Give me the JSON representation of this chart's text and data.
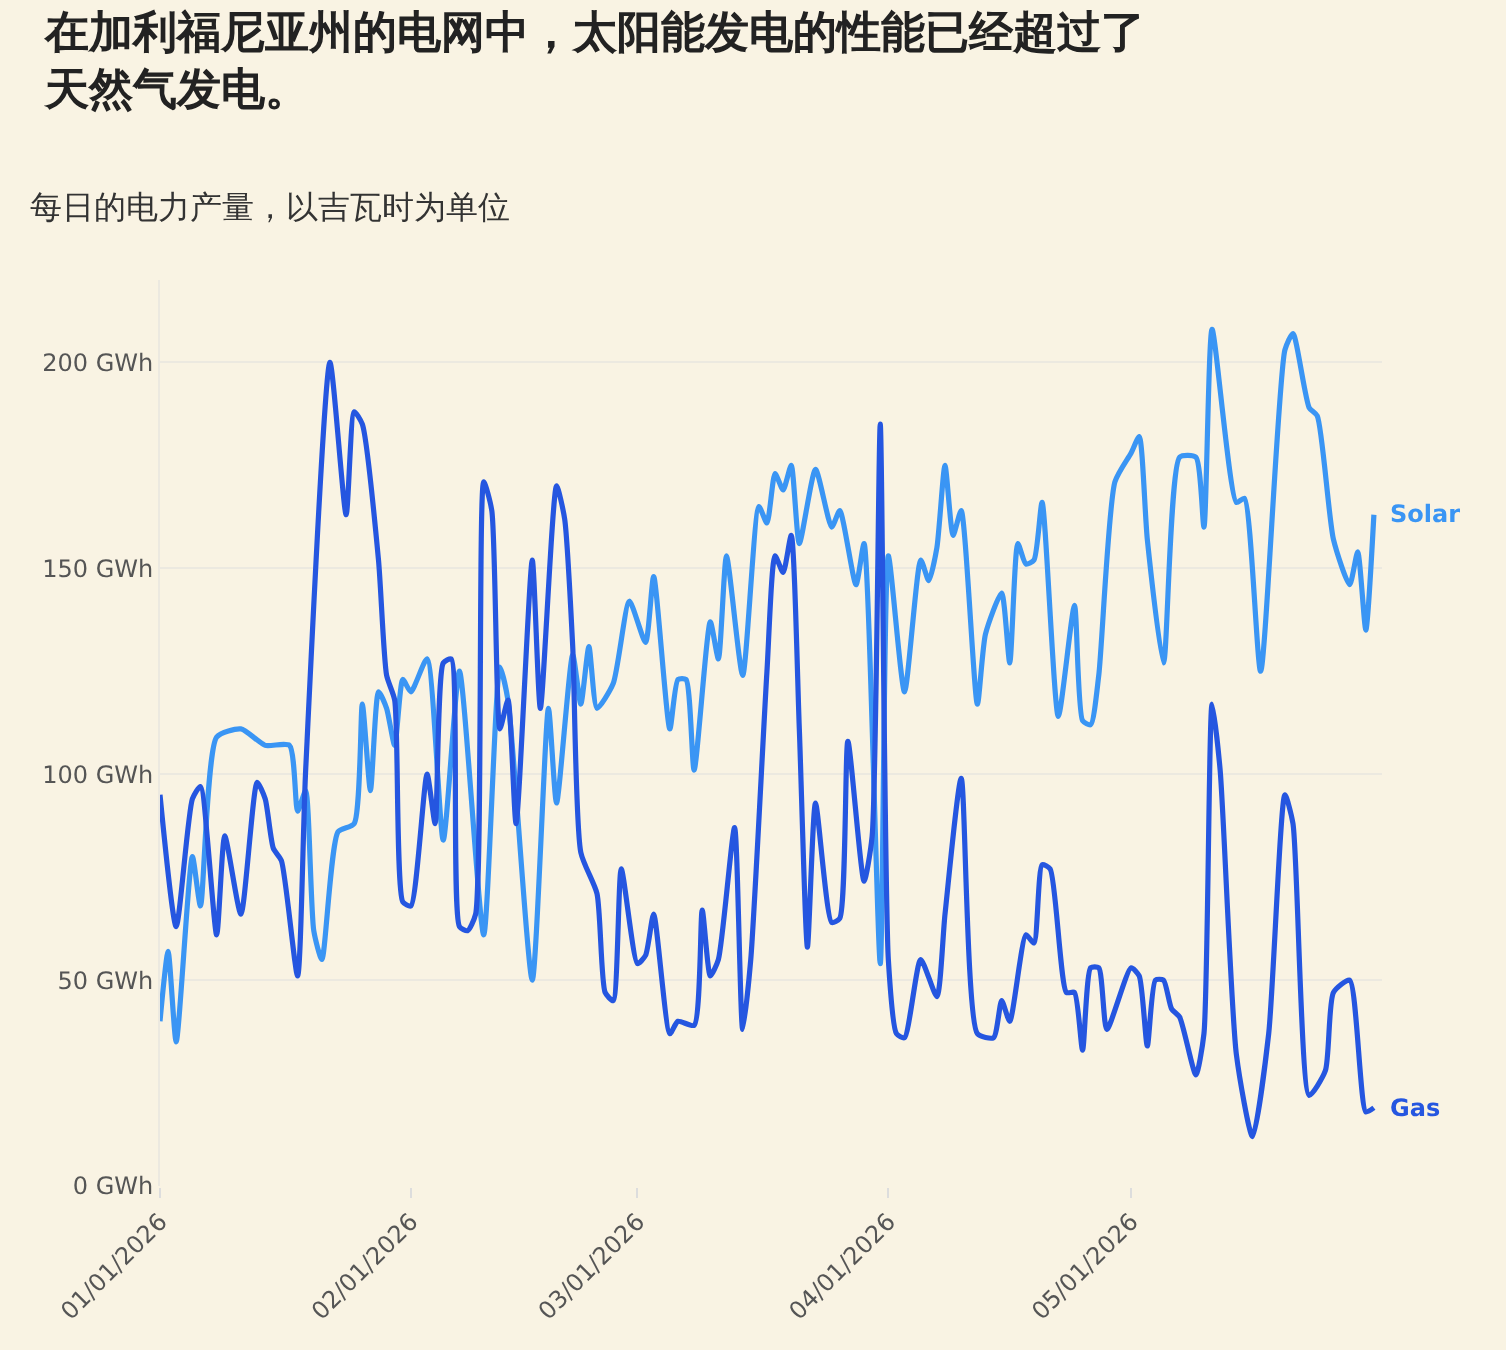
{
  "chart_data": {
    "type": "line",
    "title": "在加利福尼亚州的电网中，太阳能发电的性能已经超过了天然气发电。",
    "subtitle": "每日的电力产量，以吉瓦时为单位",
    "series": [
      {
        "name": "Solar",
        "color": "#3a95f4",
        "x": [
          "2026-01-01",
          "2026-01-02",
          "2026-01-03",
          "2026-01-05",
          "2026-01-06",
          "2026-01-08",
          "2026-01-11",
          "2026-01-14",
          "2026-01-17",
          "2026-01-18",
          "2026-01-19",
          "2026-01-20",
          "2026-01-21",
          "2026-01-23",
          "2026-01-25",
          "2026-01-26",
          "2026-01-27",
          "2026-01-28",
          "2026-01-29",
          "2026-01-30",
          "2026-01-31",
          "2026-02-01",
          "2026-02-03",
          "2026-02-05",
          "2026-02-07",
          "2026-02-10",
          "2026-02-12",
          "2026-02-13",
          "2026-02-16",
          "2026-02-18",
          "2026-02-19",
          "2026-02-21",
          "2026-02-22",
          "2026-02-23",
          "2026-02-24",
          "2026-02-26",
          "2026-02-28",
          "2026-03-02",
          "2026-03-03",
          "2026-03-05",
          "2026-03-06",
          "2026-03-07",
          "2026-03-08",
          "2026-03-10",
          "2026-03-11",
          "2026-03-12",
          "2026-03-14",
          "2026-03-16",
          "2026-03-17",
          "2026-03-18",
          "2026-03-19",
          "2026-03-20",
          "2026-03-21",
          "2026-03-23",
          "2026-03-25",
          "2026-03-26",
          "2026-03-28",
          "2026-03-29",
          "2026-03-31",
          "2026-04-01",
          "2026-04-03",
          "2026-04-05",
          "2026-04-06",
          "2026-04-07",
          "2026-04-08",
          "2026-04-09",
          "2026-04-10",
          "2026-04-12",
          "2026-04-13",
          "2026-04-15",
          "2026-04-16",
          "2026-04-17",
          "2026-04-18",
          "2026-04-19",
          "2026-04-20",
          "2026-04-22",
          "2026-04-24",
          "2026-04-25",
          "2026-04-26",
          "2026-04-27",
          "2026-04-29",
          "2026-05-01",
          "2026-05-02",
          "2026-05-03",
          "2026-05-05",
          "2026-05-07",
          "2026-05-09",
          "2026-05-10",
          "2026-05-11",
          "2026-05-14",
          "2026-05-15",
          "2026-05-17",
          "2026-05-20",
          "2026-05-21",
          "2026-05-23",
          "2026-05-24",
          "2026-05-26",
          "2026-05-28",
          "2026-05-29",
          "2026-05-30",
          "2026-05-31"
        ],
        "values": [
          40,
          57,
          35,
          80,
          68,
          109,
          111,
          107,
          107,
          91,
          96,
          62,
          55,
          86,
          88,
          117,
          96,
          120,
          116,
          107,
          123,
          120,
          128,
          84,
          125,
          61,
          126,
          118,
          50,
          116,
          93,
          129,
          117,
          131,
          116,
          122,
          142,
          132,
          148,
          111,
          123,
          123,
          101,
          137,
          128,
          153,
          124,
          165,
          161,
          173,
          169,
          175,
          156,
          174,
          160,
          164,
          146,
          156,
          54,
          153,
          120,
          152,
          147,
          155,
          175,
          158,
          164,
          117,
          134,
          144,
          127,
          156,
          151,
          152,
          166,
          114,
          141,
          113,
          112,
          124,
          171,
          178,
          182,
          157,
          127,
          177,
          177,
          160,
          208,
          166,
          167,
          125,
          203,
          207,
          189,
          187,
          157,
          146,
          154,
          135,
          163
        ]
      },
      {
        "name": "Gas",
        "color": "#2556e0",
        "x": [
          "2026-01-01",
          "2026-01-03",
          "2026-01-05",
          "2026-01-06",
          "2026-01-08",
          "2026-01-09",
          "2026-01-11",
          "2026-01-13",
          "2026-01-14",
          "2026-01-15",
          "2026-01-16",
          "2026-01-18",
          "2026-01-19",
          "2026-01-22",
          "2026-01-24",
          "2026-01-25",
          "2026-01-26",
          "2026-01-28",
          "2026-01-29",
          "2026-01-30",
          "2026-01-31",
          "2026-02-01",
          "2026-02-03",
          "2026-02-04",
          "2026-02-05",
          "2026-02-06",
          "2026-02-07",
          "2026-02-08",
          "2026-02-09",
          "2026-02-10",
          "2026-02-11",
          "2026-02-12",
          "2026-02-13",
          "2026-02-14",
          "2026-02-16",
          "2026-02-17",
          "2026-02-19",
          "2026-02-20",
          "2026-02-21",
          "2026-02-22",
          "2026-02-24",
          "2026-02-25",
          "2026-02-26",
          "2026-02-27",
          "2026-03-01",
          "2026-03-02",
          "2026-03-03",
          "2026-03-05",
          "2026-03-06",
          "2026-03-08",
          "2026-03-09",
          "2026-03-10",
          "2026-03-11",
          "2026-03-13",
          "2026-03-14",
          "2026-03-15",
          "2026-03-17",
          "2026-03-18",
          "2026-03-19",
          "2026-03-20",
          "2026-03-21",
          "2026-03-22",
          "2026-03-23",
          "2026-03-25",
          "2026-03-26",
          "2026-03-27",
          "2026-03-29",
          "2026-03-30",
          "2026-03-31",
          "2026-04-01",
          "2026-04-02",
          "2026-04-03",
          "2026-04-05",
          "2026-04-07",
          "2026-04-08",
          "2026-04-10",
          "2026-04-12",
          "2026-04-14",
          "2026-04-15",
          "2026-04-16",
          "2026-04-18",
          "2026-04-19",
          "2026-04-20",
          "2026-04-21",
          "2026-04-23",
          "2026-04-24",
          "2026-04-25",
          "2026-04-26",
          "2026-04-27",
          "2026-04-28",
          "2026-05-01",
          "2026-05-02",
          "2026-05-03",
          "2026-05-04",
          "2026-05-05",
          "2026-05-06",
          "2026-05-07",
          "2026-05-09",
          "2026-05-10",
          "2026-05-11",
          "2026-05-12",
          "2026-05-14",
          "2026-05-16",
          "2026-05-18",
          "2026-05-20",
          "2026-05-21",
          "2026-05-23",
          "2026-05-25",
          "2026-05-26",
          "2026-05-28",
          "2026-05-30",
          "2026-05-31"
        ],
        "values": [
          95,
          63,
          94,
          97,
          61,
          85,
          66,
          98,
          94,
          82,
          79,
          51,
          101,
          200,
          163,
          188,
          185,
          152,
          124,
          118,
          69,
          68,
          100,
          88,
          127,
          128,
          63,
          62,
          66,
          171,
          164,
          111,
          118,
          88,
          152,
          116,
          170,
          162,
          131,
          81,
          71,
          47,
          45,
          77,
          54,
          56,
          66,
          37,
          40,
          39,
          67,
          51,
          55,
          87,
          38,
          55,
          125,
          153,
          149,
          158,
          111,
          58,
          93,
          64,
          65,
          108,
          74,
          85,
          185,
          55,
          37,
          36,
          55,
          46,
          66,
          99,
          37,
          36,
          45,
          40,
          61,
          59,
          78,
          77,
          47,
          47,
          33,
          53,
          53,
          38,
          53,
          51,
          34,
          50,
          50,
          43,
          41,
          27,
          37,
          117,
          101,
          32,
          12,
          37,
          95,
          88,
          22,
          28,
          47,
          50,
          18,
          19
        ]
      }
    ],
    "xlim": [
      "2026-01-01",
      "2026-06-01"
    ],
    "xticks": [
      {
        "value": "2026-01-01",
        "label": "01/01/2026"
      },
      {
        "value": "2026-02-01",
        "label": "02/01/2026"
      },
      {
        "value": "2026-03-01",
        "label": "03/01/2026"
      },
      {
        "value": "2026-04-01",
        "label": "04/01/2026"
      },
      {
        "value": "2026-05-01",
        "label": "05/01/2026"
      }
    ],
    "ylim": [
      0,
      220
    ],
    "yticks": [
      {
        "value": 0,
        "label": "0 GWh"
      },
      {
        "value": 50,
        "label": "50 GWh"
      },
      {
        "value": 100,
        "label": "100 GWh"
      },
      {
        "value": 150,
        "label": "150 GWh"
      },
      {
        "value": 200,
        "label": "200 GWh"
      }
    ],
    "grid": "y",
    "legend": false,
    "marker": "none",
    "line_style": "solid"
  }
}
